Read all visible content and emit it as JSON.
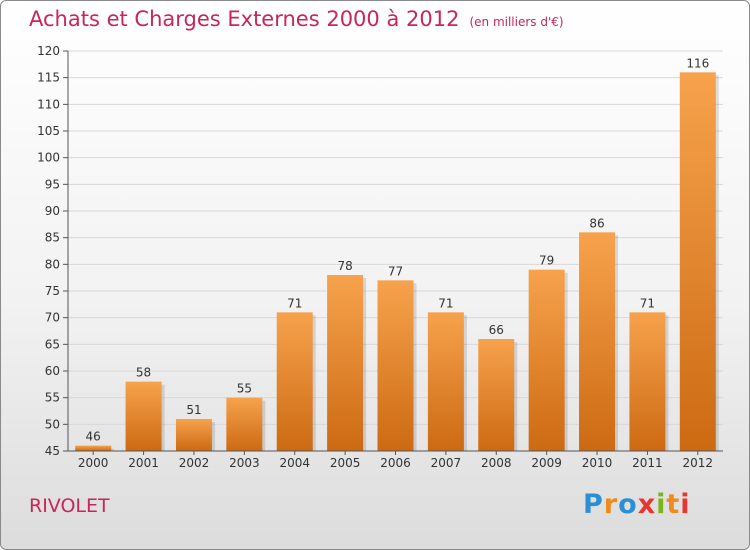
{
  "header": {
    "title": "Achats et Charges Externes 2000 à 2012",
    "unit": "(en milliers d'€)"
  },
  "footer": {
    "place": "RIVOLET",
    "logo": {
      "letters": [
        "P",
        "r",
        "o",
        "x",
        "i",
        "t",
        "i"
      ],
      "colors": [
        "#2b8fd6",
        "#f08a1c",
        "#2b8fd6",
        "#e8362f",
        "#7ab51d",
        "#f08a1c",
        "#e8362f"
      ]
    }
  },
  "colors": {
    "bar_top": "#f7a24d",
    "bar_bottom": "#cc6a12",
    "axis": "#555555",
    "grid": "#d8d8d8",
    "title": "#c8265a"
  },
  "chart_data": {
    "type": "bar",
    "title": "Achats et Charges Externes 2000 à 2012",
    "subtitle": "(en milliers d'€)",
    "categories": [
      "2000",
      "2001",
      "2002",
      "2003",
      "2004",
      "2005",
      "2006",
      "2007",
      "2008",
      "2009",
      "2010",
      "2011",
      "2012"
    ],
    "values": [
      46,
      58,
      51,
      55,
      71,
      78,
      77,
      71,
      66,
      79,
      86,
      71,
      116
    ],
    "ylim": [
      45,
      120
    ],
    "yticks": [
      45,
      50,
      55,
      60,
      65,
      70,
      75,
      80,
      85,
      90,
      95,
      100,
      105,
      110,
      115,
      120
    ],
    "grid": true,
    "data_labels": true,
    "legend": "none"
  }
}
